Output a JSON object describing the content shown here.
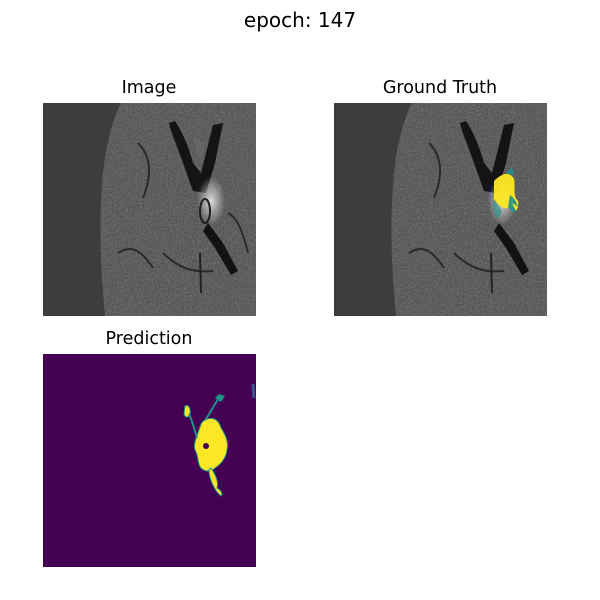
{
  "figure": {
    "suptitle": "epoch: 147",
    "panels": {
      "image": {
        "title": "Image"
      },
      "ground_truth": {
        "title": "Ground Truth"
      },
      "prediction": {
        "title": "Prediction"
      }
    }
  },
  "colors": {
    "background_gray": "#3d3d3d",
    "viridis_dark": "#440154",
    "viridis_teal": "#21918c",
    "viridis_yellow": "#fde725"
  }
}
